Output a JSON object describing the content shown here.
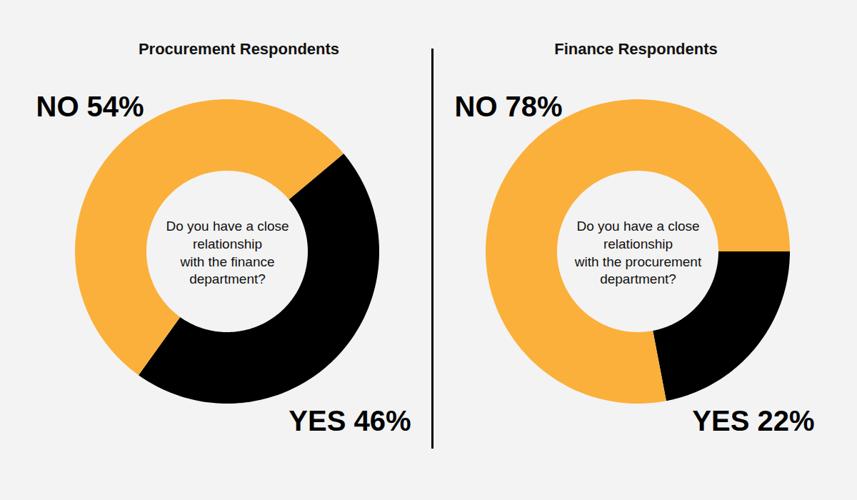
{
  "chart_data": [
    {
      "type": "pie",
      "title": "Procurement Respondents",
      "annotation": "Do you have a close\nrelationship\nwith the finance\ndepartment?",
      "categories": [
        "NO",
        "YES"
      ],
      "values": [
        54,
        46
      ],
      "value_labels": [
        "54%",
        "46%"
      ],
      "colors": [
        "#fbb03b",
        "#000000"
      ],
      "data_labels": true
    },
    {
      "type": "pie",
      "title": "Finance Respondents",
      "annotation": "Do you have a close\nrelationship\nwith the procurement\ndepartment?",
      "categories": [
        "NO",
        "YES"
      ],
      "values": [
        78,
        22
      ],
      "value_labels": [
        "78%",
        "22%"
      ],
      "colors": [
        "#fbb03b",
        "#000000"
      ],
      "data_labels": true
    }
  ]
}
